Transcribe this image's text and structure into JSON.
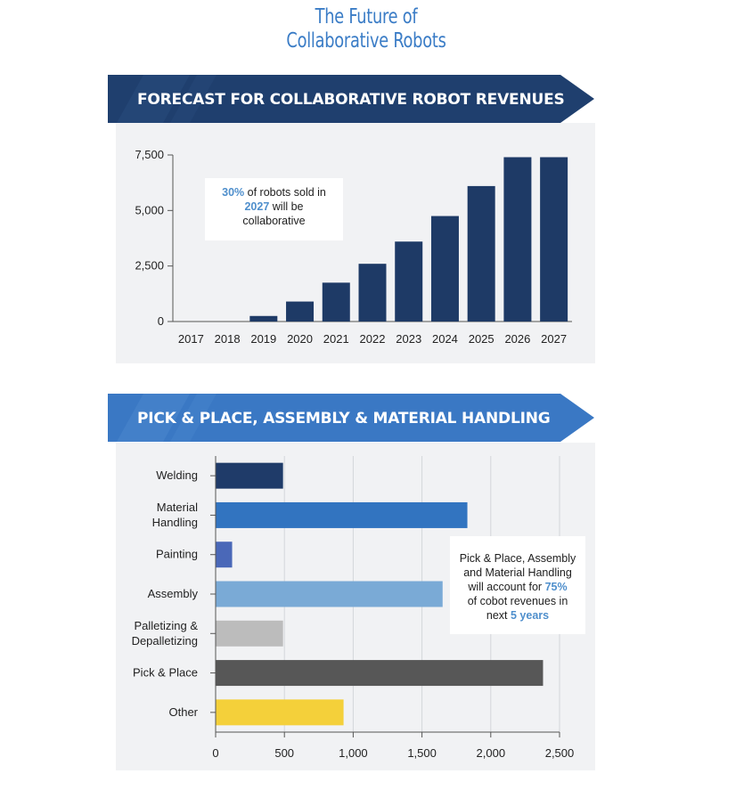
{
  "header": {
    "title_line1": "The Future of",
    "title_line2": "Collaborative Robots"
  },
  "colors": {
    "title": "#3a7cc6",
    "banner_dark": "#1f3f6e",
    "banner_light": "#3a78c4",
    "bar_dark": "#1e3a66",
    "highlight": "#4f8fcc"
  },
  "callout_revenue": {
    "part1": "30%",
    "part2": " of robots sold in",
    "part3": "2027",
    "part4": " will be",
    "part5": "collaborative"
  },
  "callout_applications": {
    "line1": "Pick & Place, Assembly",
    "line2": "and Material Handling",
    "line3a": "will account for ",
    "line3b": "75%",
    "line4": "of cobot revenues in",
    "line5a": "next ",
    "line5b": "5 years"
  },
  "chart_data": [
    {
      "type": "bar",
      "title": "FORECAST FOR COLLABORATIVE ROBOT REVENUES",
      "categories": [
        "2017",
        "2018",
        "2019",
        "2020",
        "2021",
        "2022",
        "2023",
        "2024",
        "2025",
        "2026",
        "2027"
      ],
      "values": [
        0,
        0,
        250,
        900,
        1750,
        2600,
        3600,
        4750,
        6100,
        7400,
        7400
      ],
      "ylim": [
        0,
        7500
      ],
      "yticks": [
        0,
        2500,
        5000,
        7500
      ],
      "ytick_labels": [
        "0",
        "2,500",
        "5,000",
        "7,500"
      ],
      "grid": false,
      "color": "#1e3a66"
    },
    {
      "type": "bar",
      "orientation": "horizontal",
      "title": "PICK & PLACE, ASSEMBLY & MATERIAL HANDLING",
      "categories": [
        "Welding",
        "Material Handling",
        "Painting",
        "Assembly",
        "Palletizing & Depalletizing",
        "Pick & Place",
        "Other"
      ],
      "category_lines": [
        [
          "Welding"
        ],
        [
          "Material",
          "Handling"
        ],
        [
          "Painting"
        ],
        [
          "Assembly"
        ],
        [
          "Palletizing &",
          "Depalletizing"
        ],
        [
          "Pick & Place"
        ],
        [
          "Other"
        ]
      ],
      "values": [
        490,
        1830,
        120,
        1650,
        490,
        2380,
        930
      ],
      "colors": [
        "#1f3b69",
        "#3274c0",
        "#4a68b8",
        "#7aaad6",
        "#bcbcbc",
        "#575757",
        "#f4d03a"
      ],
      "xlim": [
        0,
        2500
      ],
      "xticks": [
        0,
        500,
        1000,
        1500,
        2000,
        2500
      ],
      "xtick_labels": [
        "0",
        "500",
        "1,000",
        "1,500",
        "2,000",
        "2,500"
      ],
      "grid": true
    }
  ]
}
